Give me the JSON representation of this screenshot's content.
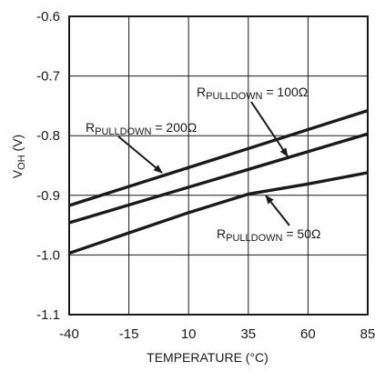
{
  "chart_data": {
    "type": "line",
    "xlabel": "TEMPERATURE (°C)",
    "ylabel_main": "V",
    "ylabel_sub": "OH",
    "ylabel_unit": " (V)",
    "xlim": [
      -40,
      85
    ],
    "ylim": [
      -1.1,
      -0.6
    ],
    "x_ticks": [
      -40,
      -15,
      10,
      35,
      60,
      85
    ],
    "x_tick_labels": [
      "-40",
      "-15",
      "10",
      "35",
      "60",
      "85"
    ],
    "y_ticks": [
      -0.6,
      -0.7,
      -0.8,
      -0.9,
      -1.0,
      -1.1
    ],
    "y_tick_labels": [
      "-0.6",
      "-0.7",
      "-0.8",
      "-0.9",
      "-1.0",
      "-1.1"
    ],
    "grid": true,
    "series": [
      {
        "label_main": "R",
        "label_sub": "PULLDOWN",
        "label_tail": " = 200Ω",
        "x": [
          -40,
          85
        ],
        "y": [
          -0.917,
          -0.758
        ]
      },
      {
        "label_main": "R",
        "label_sub": "PULLDOWN",
        "label_tail": " = 100Ω",
        "x": [
          -40,
          85
        ],
        "y": [
          -0.946,
          -0.797
        ]
      },
      {
        "label_main": "R",
        "label_sub": "PULLDOWN",
        "label_tail": " = 50Ω",
        "x": [
          -40,
          10,
          35,
          60,
          85
        ],
        "y": [
          -0.997,
          -0.929,
          -0.898,
          -0.881,
          -0.862
        ]
      }
    ]
  }
}
